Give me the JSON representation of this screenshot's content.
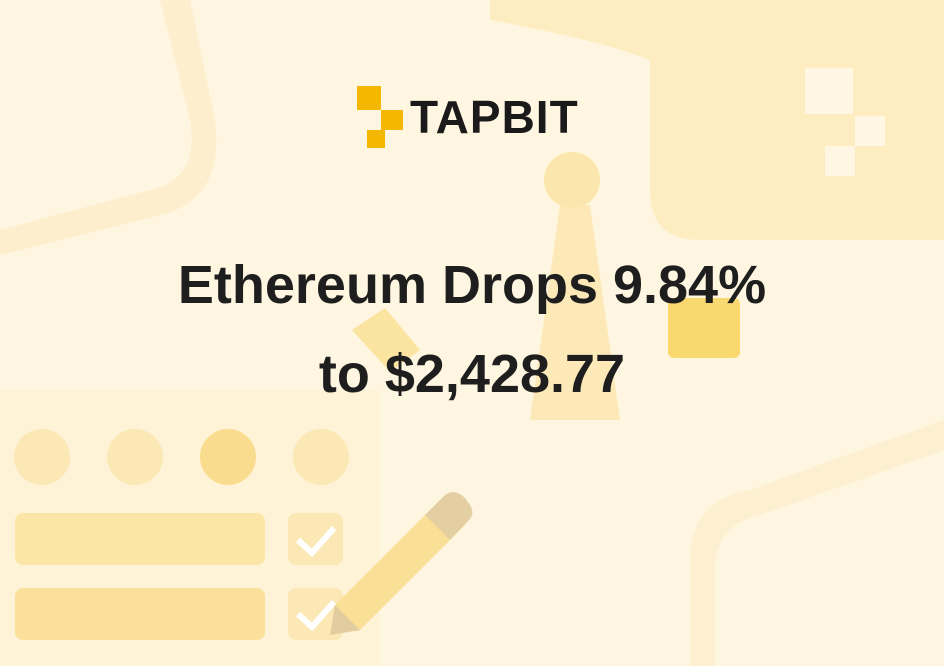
{
  "brand": "TAPBIT",
  "headline": {
    "line1": "Ethereum Drops 9.84%",
    "line2": "to $2,428.77"
  }
}
